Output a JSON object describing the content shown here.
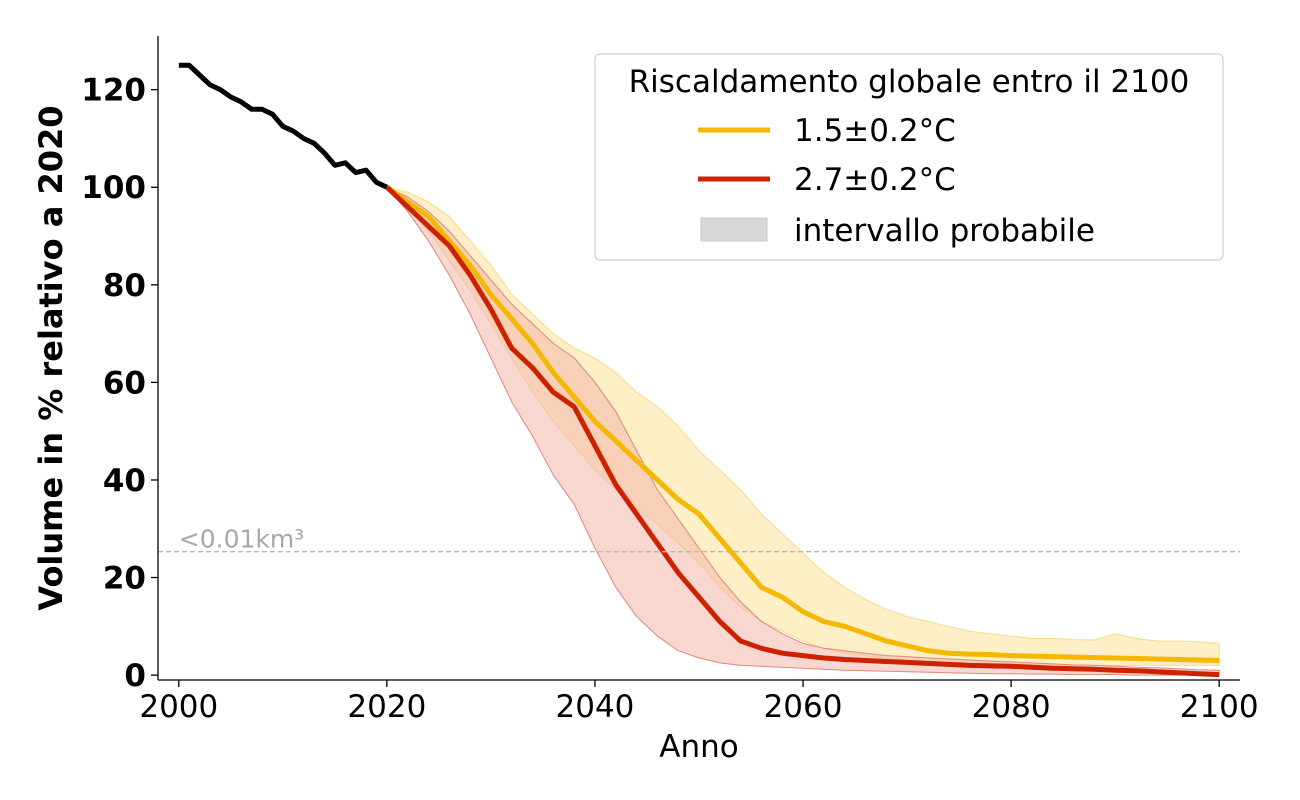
{
  "chart_data": {
    "type": "line",
    "xlabel": "Anno",
    "ylabel": "Volume in % relativo a 2020",
    "xlim": [
      1998,
      2102
    ],
    "ylim": [
      -1,
      131
    ],
    "xticks": [
      2000,
      2020,
      2040,
      2060,
      2080,
      2100
    ],
    "yticks": [
      0,
      20,
      40,
      60,
      80,
      100,
      120
    ],
    "grid": false,
    "legend": {
      "title": "Riscaldamento globale entro il 2100",
      "placement": "top-right",
      "entries": [
        "1.5±0.2°C",
        "2.7±0.2°C",
        "intervallo probabile"
      ]
    },
    "annotations": [
      {
        "text": "<0.01km³",
        "y": 25.3,
        "style": "dashed horizontal line"
      }
    ],
    "colors": {
      "historical": "#000000",
      "scenario_15": "#f5b800",
      "scenario_27": "#cc2200",
      "band_gray": "#d8d8d8"
    },
    "series": [
      {
        "key": "historical",
        "x": [
          2000,
          2001,
          2002,
          2003,
          2004,
          2005,
          2006,
          2007,
          2008,
          2009,
          2010,
          2011,
          2012,
          2013,
          2014,
          2015,
          2016,
          2017,
          2018,
          2019,
          2020
        ],
        "values": [
          125,
          125,
          123,
          121,
          120,
          118.5,
          117.5,
          116,
          116,
          115,
          112.5,
          111.5,
          110,
          109,
          107,
          104.5,
          105,
          103,
          103.5,
          101,
          100
        ]
      },
      {
        "name": "1.5±0.2°C",
        "key": "scenario_15",
        "x": [
          2020,
          2022,
          2024,
          2026,
          2028,
          2030,
          2032,
          2034,
          2036,
          2038,
          2040,
          2042,
          2044,
          2046,
          2048,
          2050,
          2052,
          2054,
          2056,
          2058,
          2060,
          2062,
          2064,
          2066,
          2068,
          2070,
          2072,
          2074,
          2076,
          2078,
          2080,
          2082,
          2084,
          2086,
          2088,
          2090,
          2092,
          2094,
          2096,
          2098,
          2100
        ],
        "values": [
          100,
          97,
          94,
          89,
          84,
          78,
          73,
          68,
          62,
          57,
          52,
          48,
          44,
          40,
          36,
          33,
          28,
          23,
          18,
          16,
          13,
          11,
          10,
          8.5,
          7,
          6,
          5,
          4.5,
          4.3,
          4.2,
          4,
          3.9,
          3.8,
          3.7,
          3.6,
          3.5,
          3.4,
          3.3,
          3.2,
          3.1,
          3
        ],
        "lower": [
          100,
          96,
          91,
          85,
          79,
          72,
          65,
          58,
          52,
          47,
          42,
          38,
          34,
          31,
          27,
          23,
          18,
          14,
          11,
          9,
          7,
          5.5,
          4.5,
          4,
          3.5,
          3,
          2.8,
          2.6,
          2.5,
          2.4,
          2.3,
          2.2,
          2.1,
          2,
          2,
          2,
          2,
          2,
          2,
          2,
          2
        ],
        "upper": [
          100,
          99,
          97,
          94,
          89,
          84,
          78,
          74,
          70,
          67,
          65,
          62,
          58,
          55,
          51,
          46,
          42,
          38,
          33,
          29,
          25,
          21,
          18,
          15.5,
          13.5,
          12,
          11,
          10,
          9,
          8.5,
          8,
          7.5,
          7.5,
          7.3,
          7.2,
          8.5,
          7.5,
          7,
          7,
          6.8,
          6.5
        ]
      },
      {
        "name": "2.7±0.2°C",
        "key": "scenario_27",
        "x": [
          2020,
          2022,
          2024,
          2026,
          2028,
          2030,
          2032,
          2034,
          2036,
          2038,
          2040,
          2042,
          2044,
          2046,
          2048,
          2050,
          2052,
          2054,
          2056,
          2058,
          2060,
          2062,
          2064,
          2066,
          2068,
          2070,
          2072,
          2074,
          2076,
          2078,
          2080,
          2082,
          2084,
          2086,
          2088,
          2090,
          2092,
          2094,
          2096,
          2098,
          2100
        ],
        "values": [
          100,
          96,
          92,
          88,
          82,
          75,
          67,
          63,
          58,
          55,
          47,
          39,
          33,
          27,
          21,
          16,
          11,
          7,
          5.5,
          4.5,
          4,
          3.5,
          3.2,
          3,
          2.8,
          2.6,
          2.4,
          2.2,
          2,
          1.9,
          1.8,
          1.6,
          1.4,
          1.3,
          1.2,
          1,
          0.9,
          0.7,
          0.5,
          0.3,
          0.1
        ],
        "lower": [
          100,
          95,
          89,
          82,
          74,
          65,
          56,
          49,
          41,
          35,
          26,
          18,
          12,
          8,
          5,
          3.5,
          2.5,
          2,
          1.8,
          1.6,
          1.4,
          1.2,
          1,
          0.9,
          0.8,
          0.7,
          0.6,
          0.5,
          0.4,
          0.3,
          0.3,
          0.2,
          0.2,
          0.1,
          0.1,
          0.1,
          0,
          0,
          0,
          0,
          0
        ],
        "upper": [
          100,
          98,
          95,
          91,
          86,
          81,
          76,
          72,
          68,
          65,
          60,
          54,
          46,
          38,
          32,
          26,
          20,
          15,
          11,
          8.5,
          6.5,
          5.5,
          5,
          4.5,
          4,
          3.8,
          3.5,
          3.3,
          3.1,
          2.9,
          2.7,
          2.5,
          2.3,
          2.1,
          2,
          1.8,
          1.6,
          1.5,
          1.3,
          1.1,
          1
        ]
      }
    ]
  }
}
